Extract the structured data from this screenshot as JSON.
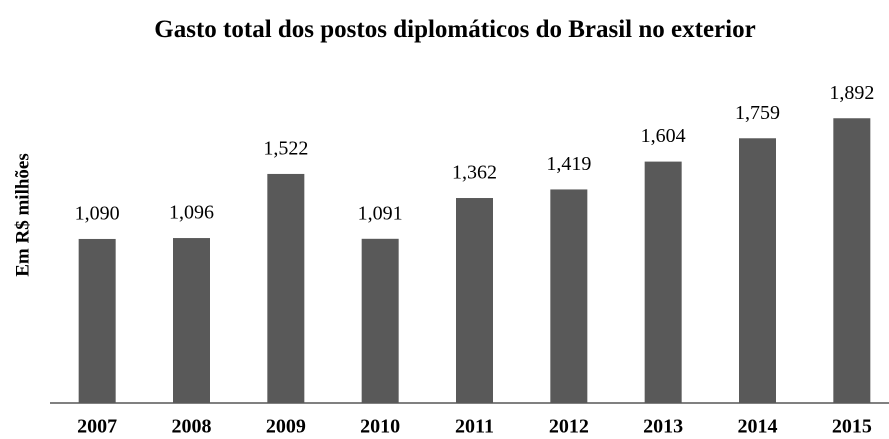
{
  "chart_data": {
    "type": "bar",
    "title": "Gasto total dos postos diplomáticos do Brasil no exterior",
    "y_label": "Em R$ milhões",
    "categories": [
      "2007",
      "2008",
      "2009",
      "2010",
      "2011",
      "2012",
      "2013",
      "2014",
      "2015"
    ],
    "values": [
      1090,
      1096,
      1522,
      1091,
      1362,
      1419,
      1604,
      1759,
      1892
    ],
    "value_labels": [
      "1,090",
      "1,096",
      "1,522",
      "1,091",
      "1,362",
      "1,419",
      "1,604",
      "1,759",
      "1,892"
    ],
    "color": "#595959",
    "ylim": [
      0,
      2000
    ]
  }
}
